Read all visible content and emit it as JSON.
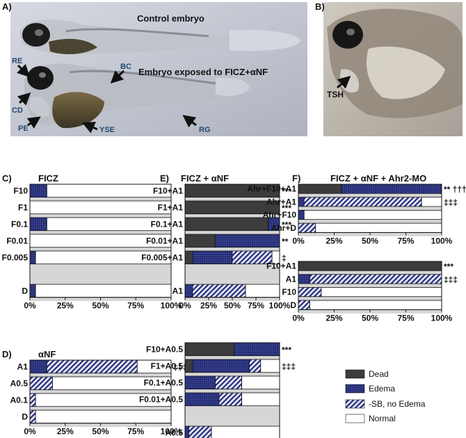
{
  "photos": {
    "A": {
      "panel_label": "A)",
      "control_caption": "Control embryo",
      "exposed_caption": "Embryo exposed to FICZ+αNF",
      "arrow_labels": [
        "RE",
        "BC",
        "CD",
        "PE",
        "YSE",
        "RG"
      ]
    },
    "B": {
      "panel_label": "B)",
      "arrow_labels": [
        "TSH"
      ]
    }
  },
  "legend": {
    "items": [
      {
        "key": "dead",
        "label": "Dead",
        "color": "#3c3c3c"
      },
      {
        "key": "edema",
        "label": "Edema",
        "color": "#26307a"
      },
      {
        "key": "sb",
        "label": "-SB, no Edema",
        "color": "#9a9ac6"
      },
      {
        "key": "normal",
        "label": "Normal",
        "color": "#ffffff"
      }
    ]
  },
  "chart_data": [
    {
      "type": "bar",
      "panel": "C)",
      "title": "FICZ",
      "stacked": true,
      "orientation": "horizontal",
      "xlim": [
        0,
        100
      ],
      "xticks": [
        "0%",
        "25%",
        "50%",
        "75%",
        "100%"
      ],
      "categories": [
        "F10",
        "F1",
        "F0.1",
        "F0.01",
        "F0.005",
        "",
        "D"
      ],
      "series": [
        {
          "name": "Dead",
          "values": [
            0,
            0,
            0,
            0,
            0,
            0,
            0
          ]
        },
        {
          "name": "Edema",
          "values": [
            12,
            0,
            12,
            0,
            4,
            0,
            4
          ]
        },
        {
          "name": "-SB, no Edema",
          "values": [
            0,
            0,
            0,
            0,
            0,
            0,
            0
          ]
        },
        {
          "name": "Normal",
          "values": [
            88,
            100,
            88,
            100,
            96,
            0,
            96
          ]
        }
      ],
      "annotations": [
        "",
        "",
        "",
        "",
        "",
        "",
        ""
      ]
    },
    {
      "type": "bar",
      "panel": "D)",
      "title": "αNF",
      "stacked": true,
      "orientation": "horizontal",
      "xlim": [
        0,
        100
      ],
      "xticks": [
        "0%",
        "25%",
        "50%",
        "75%",
        "100%"
      ],
      "categories": [
        "A1",
        "A0.5",
        "A0.1",
        "D"
      ],
      "series": [
        {
          "name": "Dead",
          "values": [
            0,
            0,
            0,
            0
          ]
        },
        {
          "name": "Edema",
          "values": [
            12,
            0,
            0,
            0
          ]
        },
        {
          "name": "-SB, no Edema",
          "values": [
            64,
            16,
            4,
            4
          ]
        },
        {
          "name": "Normal",
          "values": [
            24,
            84,
            96,
            96
          ]
        }
      ],
      "annotations": [
        "‡‡‡",
        "",
        "",
        ""
      ]
    },
    {
      "type": "bar",
      "panel": "E)",
      "title": "FICZ + αNF",
      "stacked": true,
      "orientation": "horizontal",
      "xlim": [
        0,
        100
      ],
      "xticks": [
        "0%",
        "25%",
        "50%",
        "75%",
        "100%"
      ],
      "categories": [
        "F10+A1",
        "F1+A1",
        "F0.1+A1",
        "F0.01+A1",
        "F0.005+A1",
        "",
        "A1"
      ],
      "series": [
        {
          "name": "Dead",
          "values": [
            100,
            100,
            88,
            32,
            8,
            0,
            0
          ]
        },
        {
          "name": "Edema",
          "values": [
            0,
            0,
            12,
            68,
            42,
            0,
            8
          ]
        },
        {
          "name": "-SB, no Edema",
          "values": [
            0,
            0,
            0,
            0,
            42,
            0,
            56
          ]
        },
        {
          "name": "Normal",
          "values": [
            0,
            0,
            0,
            0,
            8,
            0,
            36
          ]
        }
      ],
      "annotations": [
        "***",
        "***",
        "***",
        "**",
        "‡",
        "",
        ""
      ]
    },
    {
      "type": "bar",
      "panel": "",
      "title": "",
      "stacked": true,
      "orientation": "horizontal",
      "xlim": [
        0,
        100
      ],
      "xticks": [
        "0%",
        "25%",
        "50%",
        "75%",
        "100%"
      ],
      "categories": [
        "F10+A0.5",
        "F1+A0.5",
        "F0.1+A0.5",
        "F0.01+A0.5",
        "",
        "A0.5"
      ],
      "series": [
        {
          "name": "Dead",
          "values": [
            52,
            8,
            0,
            0,
            0,
            0
          ]
        },
        {
          "name": "Edema",
          "values": [
            48,
            60,
            32,
            36,
            0,
            4
          ]
        },
        {
          "name": "-SB, no Edema",
          "values": [
            0,
            12,
            28,
            24,
            0,
            24
          ]
        },
        {
          "name": "Normal",
          "values": [
            0,
            20,
            40,
            40,
            0,
            72
          ]
        }
      ],
      "annotations": [
        "***",
        "‡‡‡",
        "",
        "",
        "",
        ""
      ]
    },
    {
      "type": "bar",
      "panel": "F)",
      "title": "FICZ + αNF + Ahr2-MO",
      "stacked": true,
      "orientation": "horizontal",
      "xlim": [
        0,
        100
      ],
      "xticks": [
        "0%",
        "25%",
        "50%",
        "75%",
        "100%"
      ],
      "categories": [
        "Ahr+F10+A1",
        "Ahr+A1",
        "Ahr+F10",
        "Ahr+D"
      ],
      "series": [
        {
          "name": "Dead",
          "values": [
            30,
            0,
            0,
            0
          ]
        },
        {
          "name": "Edema",
          "values": [
            70,
            4,
            4,
            0
          ]
        },
        {
          "name": "-SB, no Edema",
          "values": [
            0,
            82,
            0,
            12
          ]
        },
        {
          "name": "Normal",
          "values": [
            0,
            14,
            96,
            88
          ]
        }
      ],
      "annotations": [
        "** †††",
        "‡‡‡",
        "",
        ""
      ]
    },
    {
      "type": "bar",
      "panel": "",
      "title": "",
      "stacked": true,
      "orientation": "horizontal",
      "xlim": [
        0,
        100
      ],
      "xticks": [
        "0%",
        "25%",
        "50%",
        "75%",
        "100%"
      ],
      "categories": [
        "F10+A1",
        "A1",
        "F10",
        "D"
      ],
      "series": [
        {
          "name": "Dead",
          "values": [
            100,
            0,
            0,
            0
          ]
        },
        {
          "name": "Edema",
          "values": [
            0,
            8,
            0,
            0
          ]
        },
        {
          "name": "-SB, no Edema",
          "values": [
            0,
            92,
            16,
            8
          ]
        },
        {
          "name": "Normal",
          "values": [
            0,
            0,
            84,
            92
          ]
        }
      ],
      "annotations": [
        "***",
        "‡‡‡",
        "",
        ""
      ]
    }
  ]
}
